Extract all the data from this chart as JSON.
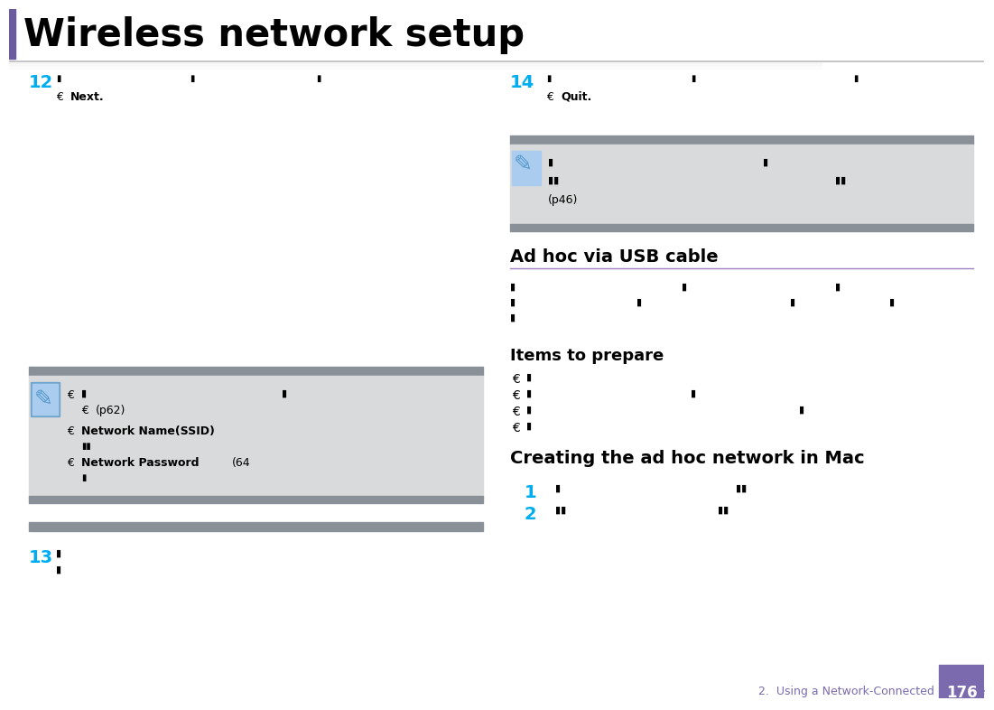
{
  "title": "Wireless network setup",
  "title_color": "#000000",
  "title_bar_color": "#6B5B9E",
  "separator_shadow_color": "#C0C0C0",
  "bg_color": "#FFFFFF",
  "page_number": "176",
  "page_number_bg": "#7B6BAE",
  "page_number_color": "#FFFFFF",
  "footer_text": "2.  Using a Network-Connected Machine",
  "footer_color": "#7B6BAE",
  "cyan_color": "#00AEEF",
  "black": "#000000",
  "dark_gray": "#666666",
  "info_box_bg": "#D8DADC",
  "info_box_stripe": "#8A9098",
  "step12_num": "12",
  "step13_num": "13",
  "step14_num": "14",
  "adhoc_heading": "Ad hoc via USB cable",
  "adhoc_line_color": "#A080C0",
  "items_heading": "Items to prepare",
  "creating_heading": "Creating the ad hoc network in Mac",
  "step1_num": "1",
  "step2_num": "2",
  "next_bold": "Next.",
  "quit_bold": "Quit.",
  "network_name_bold": "Network Name(SSID)",
  "network_pw_bold": "Network Password",
  "note_icon_color": "#5599CC"
}
